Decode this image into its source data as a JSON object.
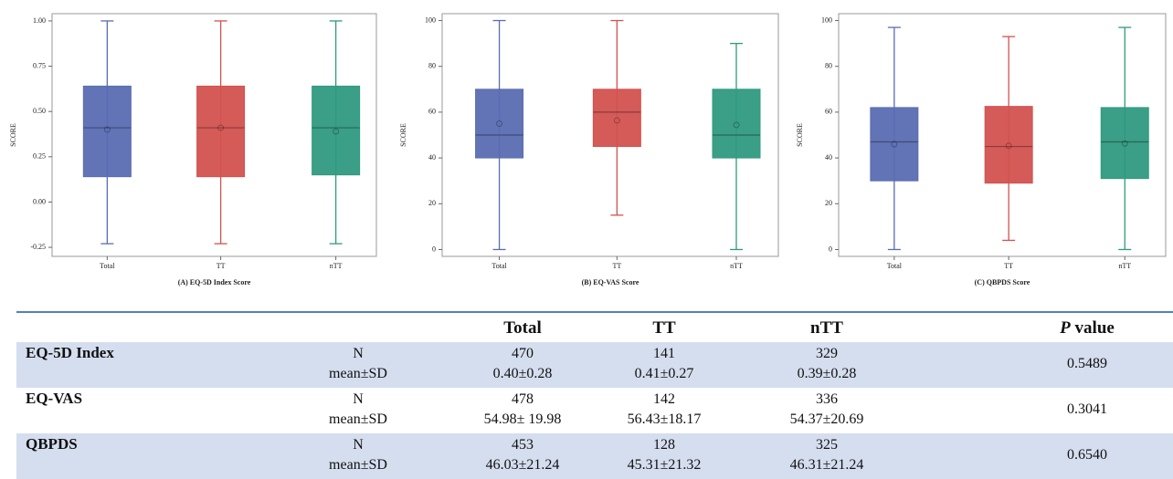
{
  "chart_data": [
    {
      "type": "box",
      "x_label": "(A) EQ-5D Index Score",
      "y_label": "SCORE",
      "categories": [
        "Total",
        "TT",
        "nTT"
      ],
      "colors": [
        "#5a6db2",
        "#d2524f",
        "#2f9a80"
      ],
      "min": [
        -0.23,
        -0.23,
        -0.23
      ],
      "q1": [
        0.14,
        0.14,
        0.15
      ],
      "median": [
        0.41,
        0.41,
        0.41
      ],
      "q3": [
        0.64,
        0.64,
        0.64
      ],
      "max": [
        1.0,
        1.0,
        1.0
      ],
      "mean": [
        0.4,
        0.41,
        0.39
      ],
      "ylim": [
        -0.3,
        1.04
      ],
      "yticks": [
        -0.25,
        {
          "value": 0,
          "label": "0.00"
        },
        0.25,
        {
          "value": 0.5,
          "label": "0.50"
        },
        0.75,
        {
          "value": 1,
          "label": "1.00"
        }
      ]
    },
    {
      "type": "box",
      "x_label": "(B) EQ-VAS Score",
      "y_label": "SCORE",
      "categories": [
        "Total",
        "TT",
        "nTT"
      ],
      "colors": [
        "#5a6db2",
        "#d2524f",
        "#2f9a80"
      ],
      "min": [
        0,
        15,
        0
      ],
      "q1": [
        40,
        45,
        40
      ],
      "median": [
        50,
        60,
        50
      ],
      "q3": [
        70,
        70,
        70
      ],
      "max": [
        100,
        100,
        90
      ],
      "mean": [
        55,
        56.4,
        54.4
      ],
      "ylim": [
        -3,
        103
      ],
      "yticks": [
        0,
        20,
        40,
        60,
        80,
        100
      ]
    },
    {
      "type": "box",
      "x_label": "(C) QBPDS Score",
      "y_label": "SCORE",
      "categories": [
        "Total",
        "TT",
        "nTT"
      ],
      "colors": [
        "#5a6db2",
        "#d2524f",
        "#2f9a80"
      ],
      "min": [
        0,
        4,
        0
      ],
      "q1": [
        30,
        29,
        31
      ],
      "median": [
        47,
        45,
        47
      ],
      "q3": [
        62,
        62.5,
        62
      ],
      "max": [
        97,
        93,
        97
      ],
      "mean": [
        46,
        45.3,
        46.3
      ],
      "ylim": [
        -3,
        103
      ],
      "yticks": [
        0,
        20,
        40,
        60,
        80,
        100
      ]
    }
  ],
  "table": {
    "header": [
      "Total",
      "TT",
      "nTT",
      "P value"
    ],
    "groups": [
      {
        "name": "EQ-5D Index",
        "row_labels": [
          "N",
          "mean±SD"
        ],
        "n": [
          470,
          141,
          329
        ],
        "mean_sd": [
          "0.40±0.28",
          "0.41±0.27",
          "0.39±0.28"
        ],
        "p_value": "0.5489"
      },
      {
        "name": "EQ-VAS",
        "row_labels": [
          "N",
          "mean±SD"
        ],
        "n": [
          478,
          142,
          336
        ],
        "mean_sd": [
          "54.98± 19.98",
          "56.43±18.17",
          "54.37±20.69"
        ],
        "p_value": "0.3041"
      },
      {
        "name": "QBPDS",
        "row_labels": [
          "N",
          "mean±SD"
        ],
        "n": [
          453,
          128,
          325
        ],
        "mean_sd": [
          "46.03±21.24",
          "45.31±21.32",
          "46.31±21.24"
        ],
        "p_value": "0.6540"
      }
    ]
  }
}
